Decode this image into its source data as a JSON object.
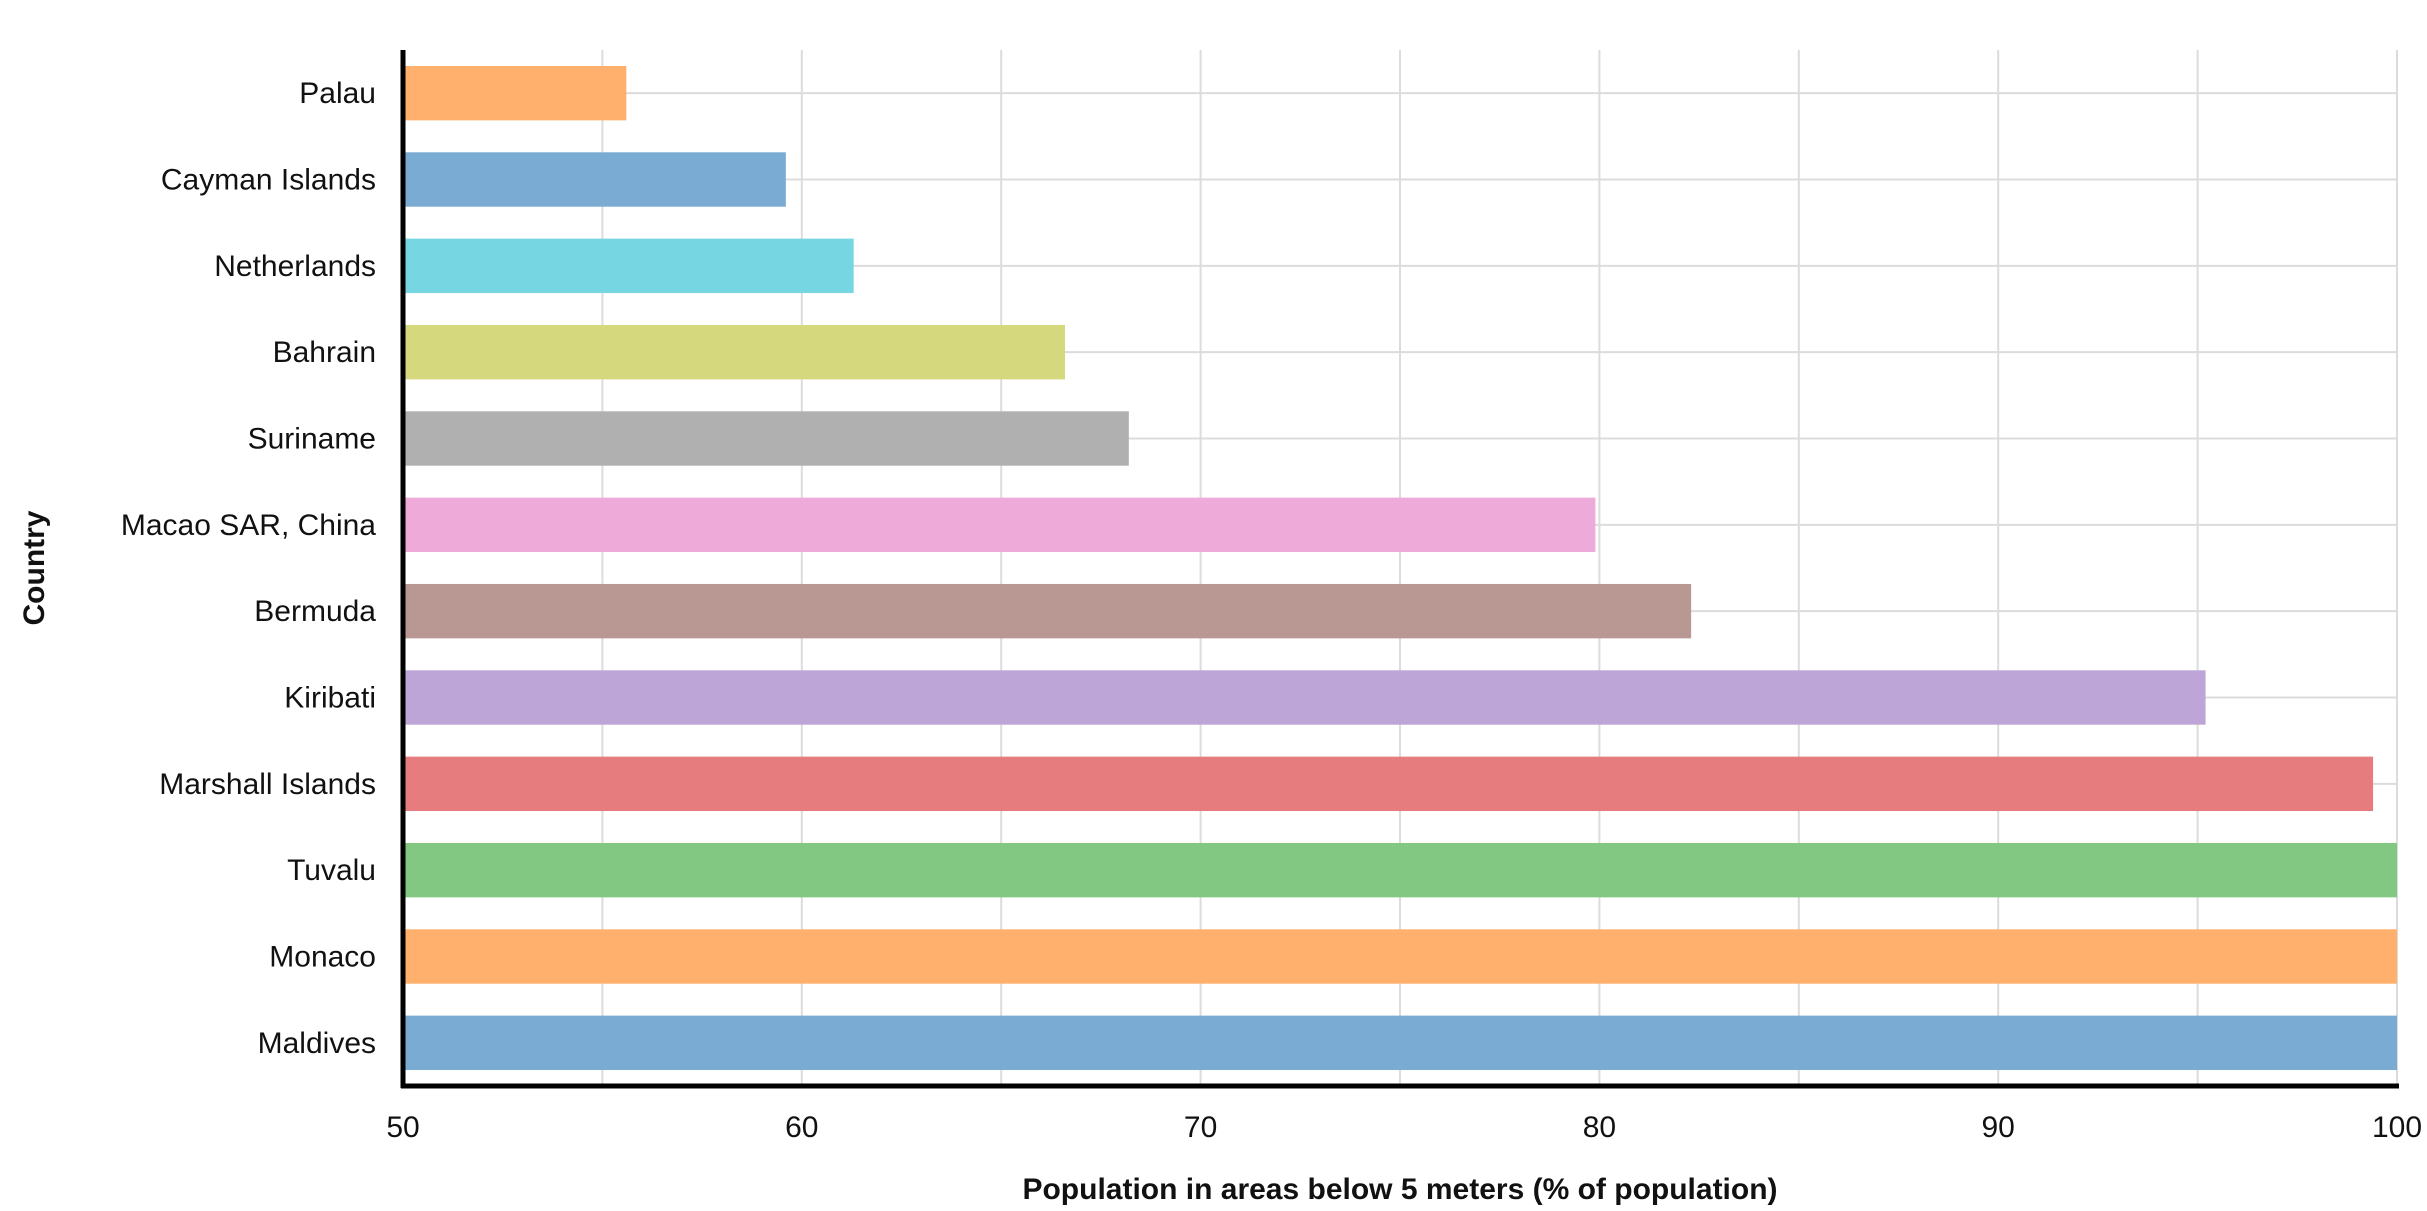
{
  "chart_data": {
    "type": "bar",
    "orientation": "horizontal",
    "title": "",
    "xlabel": "Population in areas below 5 meters (% of population)",
    "ylabel": "Country",
    "xlim": [
      50,
      100
    ],
    "x_ticks": [
      50,
      60,
      70,
      80,
      90,
      100
    ],
    "grid": true,
    "categories": [
      "Palau",
      "Cayman Islands",
      "Netherlands",
      "Bahrain",
      "Suriname",
      "Macao SAR, China",
      "Bermuda",
      "Kiribati",
      "Marshall Islands",
      "Tuvalu",
      "Monaco",
      "Maldives"
    ],
    "values": [
      55.6,
      59.6,
      61.3,
      66.6,
      68.2,
      79.9,
      82.3,
      95.2,
      99.4,
      100,
      100,
      100
    ],
    "colors": [
      "#ffb06c",
      "#7aabd2",
      "#76d7e2",
      "#d5d87d",
      "#b0b0b0",
      "#eeaad9",
      "#b99893",
      "#bea5d8",
      "#e77c7e",
      "#82c882",
      "#ffb06c",
      "#7aabd2"
    ]
  }
}
